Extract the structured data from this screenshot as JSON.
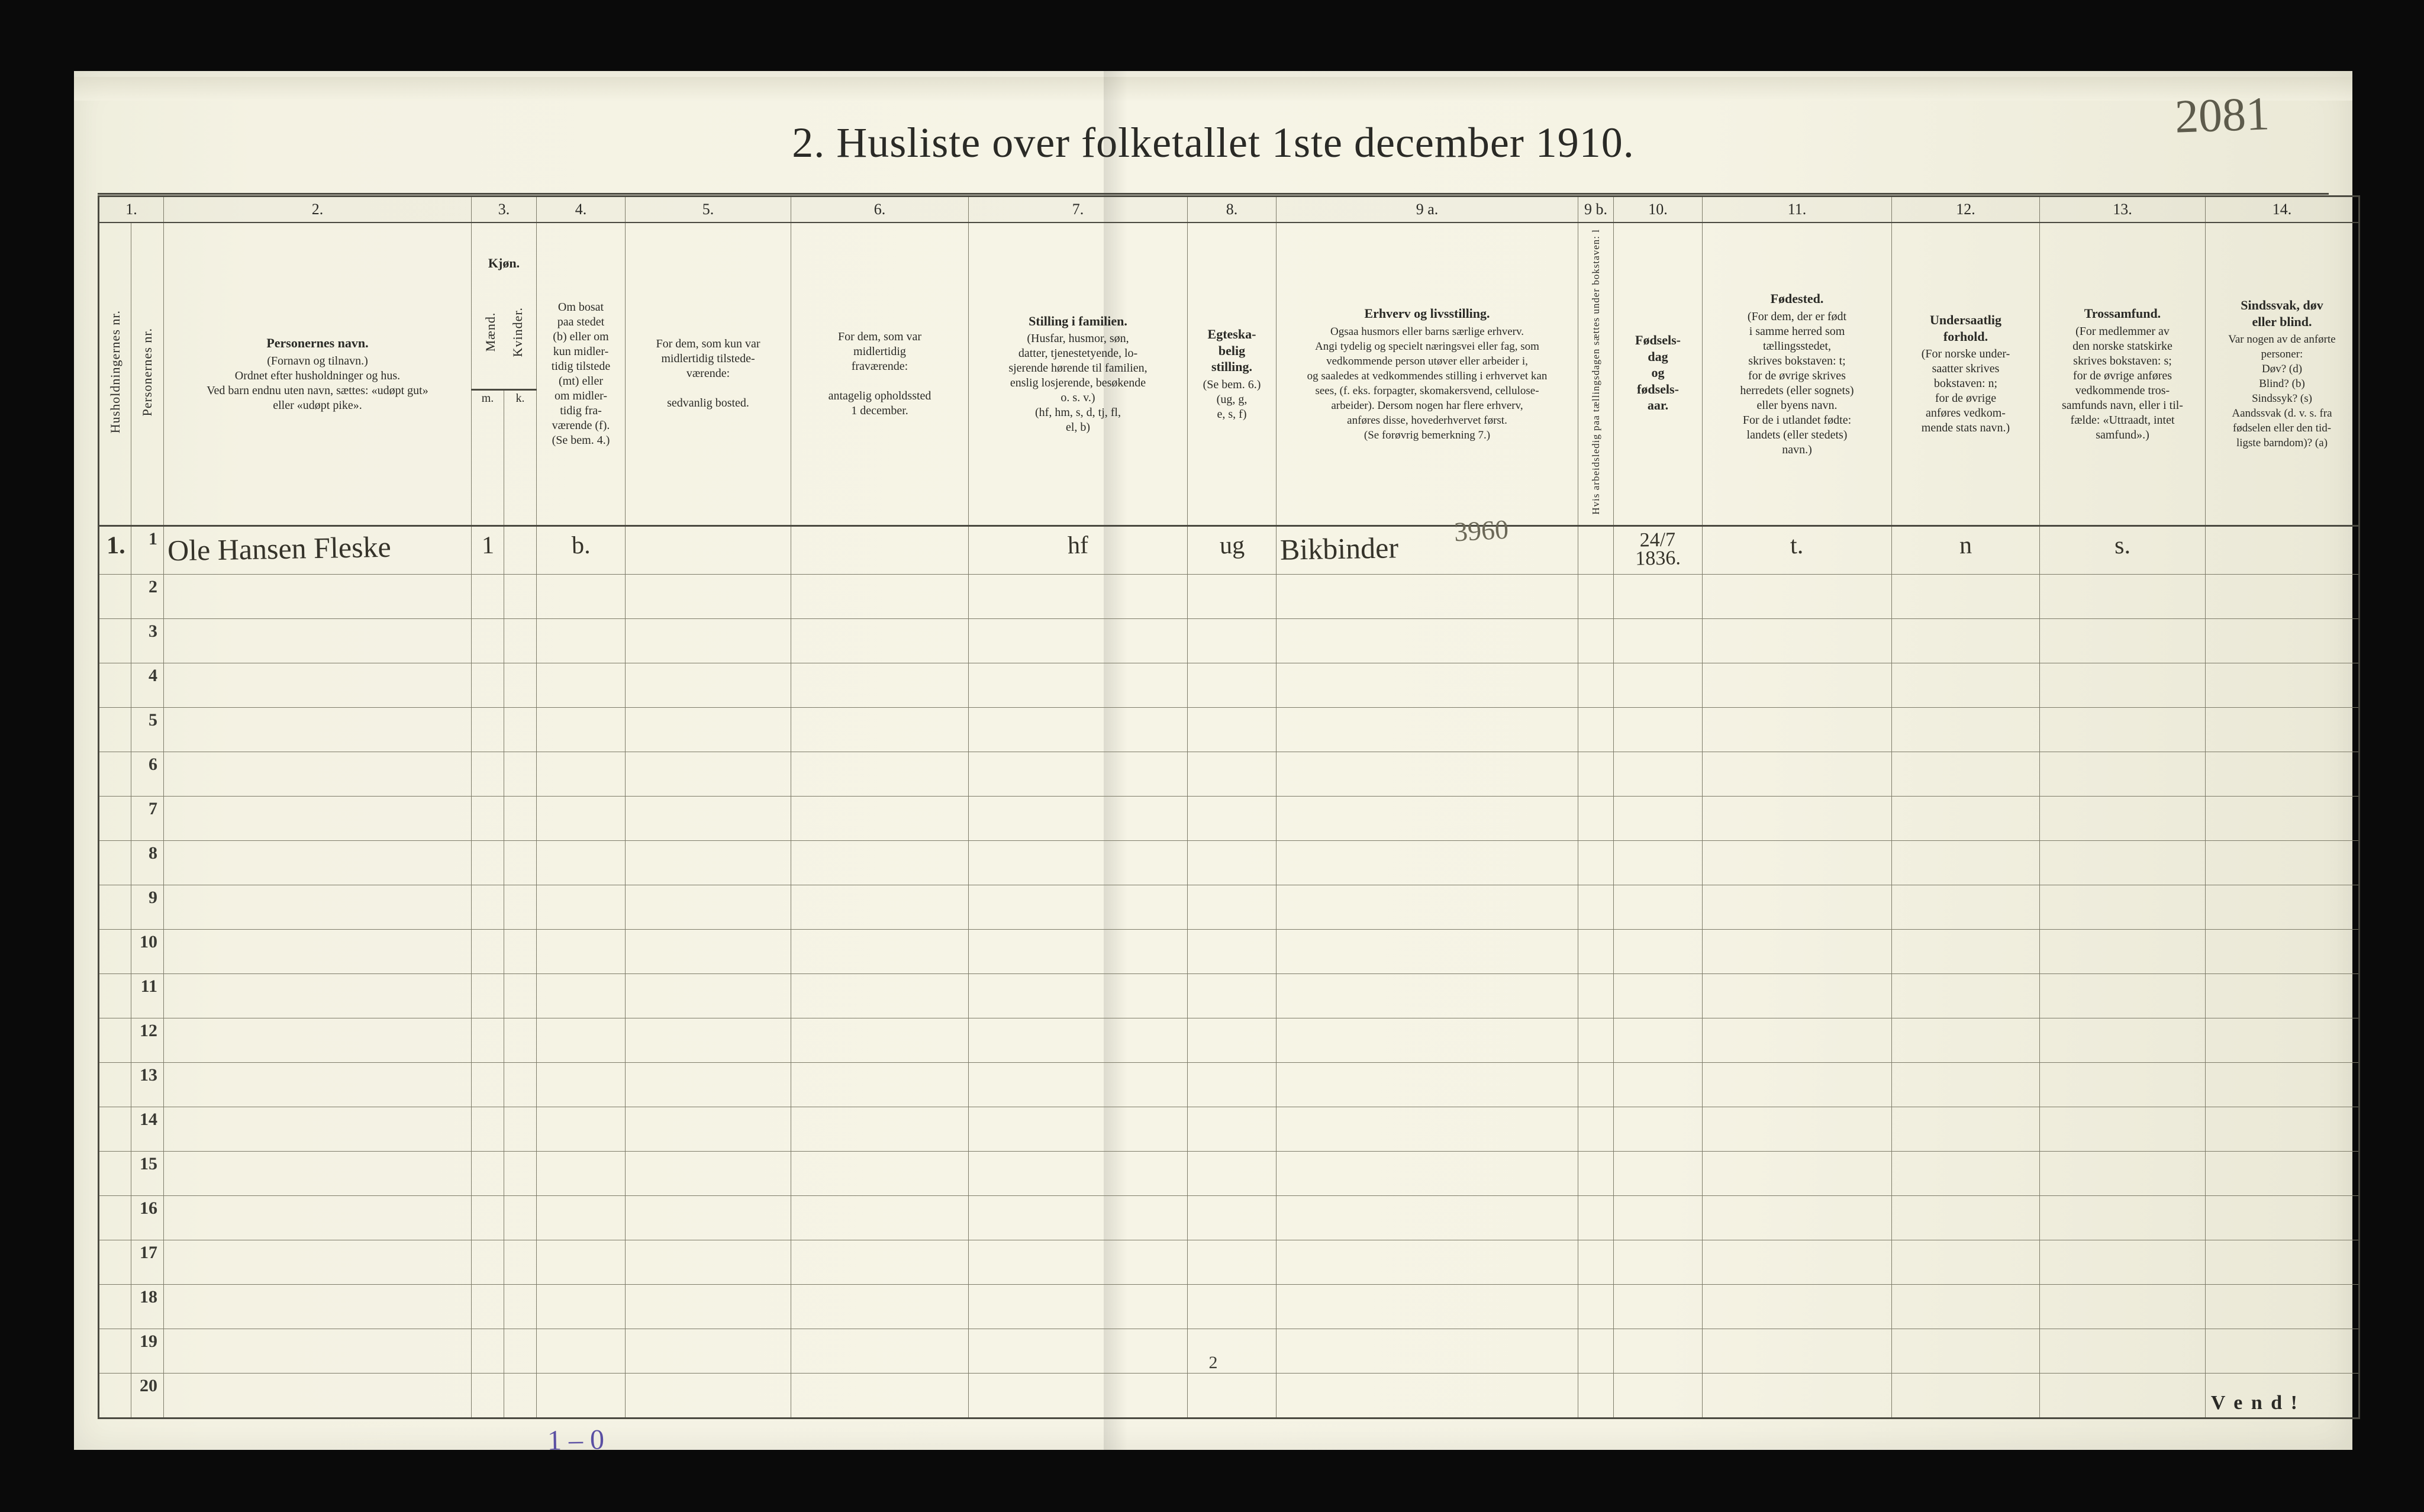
{
  "page_number_handwritten": "2081",
  "title": "2.  Husliste over folketallet 1ste december 1910.",
  "header_numbers": [
    "1.",
    "2.",
    "3.",
    "4.",
    "5.",
    "6.",
    "7.",
    "8.",
    "9 a.",
    "9 b.",
    "10.",
    "11.",
    "12.",
    "13.",
    "14."
  ],
  "col1": {
    "v1": "Husholdningernes nr.",
    "v2": "Personernes nr."
  },
  "col2": {
    "head": "Personernes navn.",
    "sub": "(Fornavn og tilnavn.)\nOrdnet efter husholdninger og hus.\nVed barn endnu uten navn, sættes: «udøpt gut»\neller «udøpt pike»."
  },
  "col3": {
    "head": "Kjøn.",
    "m": "m.",
    "k": "k.",
    "v1": "Mænd.",
    "v2": "Kvinder."
  },
  "col4": {
    "text": "Om bosat\npaa stedet\n(b) eller om\nkun midler-\ntidig tilstede\n(mt) eller\nom midler-\ntidig fra-\nværende (f).\n(Se bem. 4.)"
  },
  "col5": {
    "text": "For dem, som kun var\nmidlertidig tilstede-\nværende:\n\nsedvanlig bosted."
  },
  "col6": {
    "text": "For dem, som var\nmidlertidig\nfraværende:\n\nantagelig opholdssted\n1 december."
  },
  "col7": {
    "head": "Stilling i familien.",
    "text": "(Husfar, husmor, søn,\ndatter, tjenestetyende, lo-\nsjerende hørende til familien,\nenslig losjerende, besøkende\no. s. v.)\n(hf, hm, s, d, tj, fl,\nel, b)"
  },
  "col8": {
    "head": "Egteska-\nbelig\nstilling.",
    "text": "(Se bem. 6.)\n(ug, g,\ne, s, f)"
  },
  "col9a": {
    "head": "Erhverv og livsstilling.",
    "text": "Ogsaa husmors eller barns særlige erhverv.\nAngi tydelig og specielt næringsvei eller fag, som\nvedkommende person utøver eller arbeider i,\nog saaledes at vedkommendes stilling i erhvervet kan\nsees, (f. eks. forpagter, skomakersvend, cellulose-\narbeider). Dersom nogen har flere erhverv,\nanføres disse, hovederhvervet først.\n(Se forøvrig bemerkning 7.)"
  },
  "col9b": {
    "text": "Hvis arbeidsledig\npaa tællingsdagen sættes\nunder bokstaven: l"
  },
  "col10": {
    "head": "Fødsels-\ndag\nog\nfødsels-\naar."
  },
  "col11": {
    "head": "Fødested.",
    "text": "(For dem, der er født\ni samme herred som\ntællingsstedet,\nskrives bokstaven: t;\nfor de øvrige skrives\nherredets (eller sognets)\neller byens navn.\nFor de i utlandet fødte:\nlandets (eller stedets)\nnavn.)"
  },
  "col12": {
    "head": "Undersaatlig\nforhold.",
    "text": "(For norske under-\nsaatter skrives\nbokstaven: n;\nfor de øvrige\nanføres vedkom-\nmende stats navn.)"
  },
  "col13": {
    "head": "Trossamfund.",
    "text": "(For medlemmer av\nden norske statskirke\nskrives bokstaven: s;\nfor de øvrige anføres\nvedkommende tros-\nsamfunds navn, eller i til-\nfælde: «Uttraadt, intet\nsamfund».)"
  },
  "col14": {
    "head": "Sindssvak, døv\neller blind.",
    "text": "Var nogen av de anførte\npersoner:\nDøv?        (d)\nBlind?       (b)\nSindssyk?  (s)\nAandssvak (d. v. s. fra\nfødselen eller den tid-\nligste barndom)?  (a)"
  },
  "row": {
    "h": "1.",
    "p": "1",
    "name": "Ole Hansen Fleske",
    "m": "1",
    "k": "",
    "b": "b.",
    "c5": "",
    "c6": "",
    "stilling": "hf",
    "egt": "ug",
    "erhverv": "Bikbinder",
    "anno": "3960",
    "c9b": "",
    "fodsel": "24/7\n1836.",
    "fodested": "t.",
    "under": "n",
    "tros": "s.",
    "c14": ""
  },
  "row_numbers": [
    "2",
    "3",
    "4",
    "5",
    "6",
    "7",
    "8",
    "9",
    "10",
    "11",
    "12",
    "13",
    "14",
    "15",
    "16",
    "17",
    "18",
    "19",
    "20"
  ],
  "tally": "1 – 0",
  "footer_page": "2",
  "vend": "V e n d !"
}
